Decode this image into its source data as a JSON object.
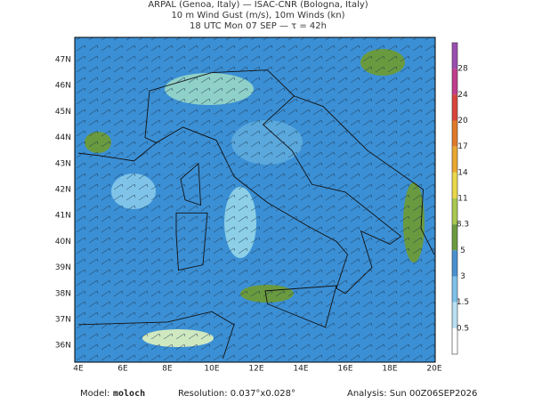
{
  "header": {
    "lines": [
      "ARPAL (Genoa, Italy)  —  ISAC-CNR (Bologna, Italy)",
      "10 m Wind Gust (m/s), 10m Winds (kn)",
      "18 UTC Mon 07 SEP  —  τ = 42h"
    ]
  },
  "map": {
    "lon_labels": [
      "4E",
      "6E",
      "8E",
      "10E",
      "12E",
      "14E",
      "16E",
      "18E",
      "20E"
    ],
    "lat_labels": [
      "47N",
      "46N",
      "45N",
      "44N",
      "43N",
      "42N",
      "41N",
      "40N",
      "39N",
      "38N",
      "37N",
      "36N"
    ]
  },
  "colorbar": {
    "labels": [
      "28",
      "24",
      "20",
      "17",
      "14",
      "11",
      "8.3",
      "5",
      "3",
      "1.5",
      "0.5"
    ]
  },
  "footer": {
    "model_label": "Model:",
    "model": "moloch",
    "resolution": "Resolution: 0.037°x0.028°",
    "analysis": "Analysis: Sun 00Z06SEP2026"
  }
}
